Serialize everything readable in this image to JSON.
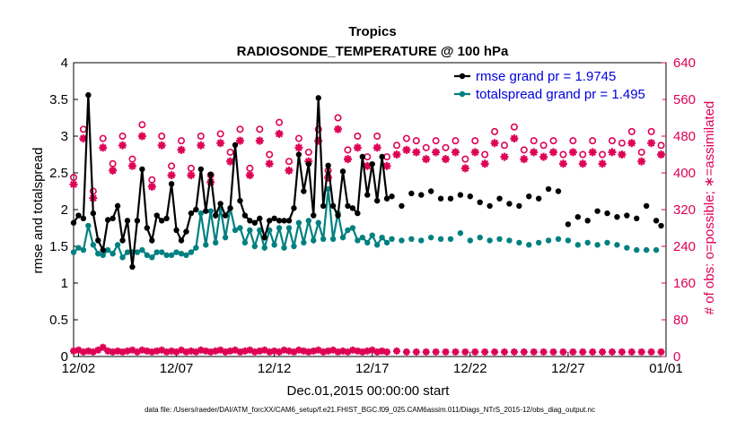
{
  "chart_data": {
    "type": "line",
    "title": "Tropics",
    "subtitle": "RADIOSONDE_TEMPERATURE @ 100 hPa",
    "xlabel": "Dec.01,2015 00:00:00 start",
    "ylabel_left": "rmse and totalspread",
    "ylabel_right": "# of obs: o=possible; ∗=assimilated",
    "footer": "data file: /Users/raeder/DAI/ATM_forcXX/CAM6_setup/f.e21.FHIST_BGC.f09_025.CAM6assim.011/Diags_NTrS_2015-12/obs_diag_output.nc",
    "x_unit": "days since Dec 01 00:00 (0.25 day steps)",
    "xlim": [
      0.75,
      31.0
    ],
    "ylim_left": [
      0,
      4
    ],
    "ylim_right": [
      0,
      640
    ],
    "yticks_left": [
      "0",
      "0.5",
      "1",
      "1.5",
      "2",
      "2.5",
      "3",
      "3.5",
      "4"
    ],
    "yticks_right": [
      "0",
      "80",
      "160",
      "240",
      "320",
      "400",
      "480",
      "560",
      "640"
    ],
    "xticks": [
      {
        "label": "12/02",
        "x": 1
      },
      {
        "label": "12/07",
        "x": 6
      },
      {
        "label": "12/12",
        "x": 11
      },
      {
        "label": "12/17",
        "x": 16
      },
      {
        "label": "12/22",
        "x": 21
      },
      {
        "label": "12/27",
        "x": 26
      },
      {
        "label": "01/01",
        "x": 31
      }
    ],
    "legend": [
      {
        "label": "rmse grand pr = 1.9745",
        "color": "#000000"
      },
      {
        "label": "totalspread grand pr = 1.495",
        "color": "#008080"
      }
    ],
    "series": [
      {
        "name": "rmse",
        "color": "#000000",
        "axis": "left",
        "x": [
          0.75,
          1.0,
          1.25,
          1.5,
          1.75,
          2.0,
          2.25,
          2.5,
          2.75,
          3.0,
          3.25,
          3.5,
          3.75,
          4.0,
          4.25,
          4.5,
          4.75,
          5.0,
          5.25,
          5.5,
          5.75,
          6.0,
          6.25,
          6.5,
          6.75,
          7.0,
          7.25,
          7.5,
          7.75,
          8.0,
          8.25,
          8.5,
          8.75,
          9.0,
          9.25,
          9.5,
          9.75,
          10.0,
          10.25,
          10.5,
          10.75,
          11.0,
          11.25,
          11.5,
          11.75,
          12.0,
          12.25,
          12.5,
          12.75,
          13.0,
          13.25,
          13.5,
          13.75,
          14.0,
          14.25,
          14.5,
          14.75,
          15.0,
          15.25,
          15.5,
          15.75,
          16.0,
          16.25,
          16.5,
          16.75
        ],
        "values": [
          1.82,
          1.92,
          1.88,
          3.56,
          1.95,
          1.58,
          1.45,
          1.86,
          1.88,
          2.05,
          1.58,
          1.85,
          1.22,
          1.85,
          2.55,
          1.75,
          1.58,
          1.92,
          1.85,
          1.88,
          2.35,
          1.72,
          1.58,
          1.7,
          1.95,
          2.0,
          2.55,
          1.98,
          2.48,
          1.92,
          2.08,
          1.92,
          2.02,
          2.88,
          2.12,
          1.92,
          1.85,
          1.82,
          1.88,
          1.62,
          1.85,
          1.88,
          1.85,
          1.85,
          1.85,
          2.02,
          2.75,
          2.25,
          2.62,
          1.92,
          3.52,
          2.05,
          2.6,
          2.05,
          1.92,
          2.52,
          2.05,
          2.02,
          1.95,
          2.72,
          2.2,
          2.62,
          2.12,
          2.72,
          2.15
        ],
        "scatter_x": [
          17.5,
          18.5,
          19.5,
          20.5,
          21.5,
          22.5,
          23.5,
          24.5,
          25.5,
          26.5,
          27.5,
          28.5,
          29.5,
          30.5
        ],
        "scatter_values": [
          2.05,
          2.2,
          2.15,
          2.2,
          2.1,
          2.15,
          2.05,
          2.15,
          2.25,
          1.9,
          1.98,
          1.9,
          1.88,
          1.85
        ],
        "extra_points": [
          {
            "x": 17.0,
            "y": 2.18
          },
          {
            "x": 18.0,
            "y": 2.22
          },
          {
            "x": 19.0,
            "y": 2.25
          },
          {
            "x": 20.0,
            "y": 2.15
          },
          {
            "x": 21.0,
            "y": 2.18
          },
          {
            "x": 22.0,
            "y": 2.05
          },
          {
            "x": 23.0,
            "y": 2.08
          },
          {
            "x": 24.0,
            "y": 2.18
          },
          {
            "x": 25.0,
            "y": 2.28
          },
          {
            "x": 26.0,
            "y": 1.8
          },
          {
            "x": 27.0,
            "y": 1.85
          },
          {
            "x": 28.0,
            "y": 1.95
          },
          {
            "x": 29.0,
            "y": 1.92
          },
          {
            "x": 30.0,
            "y": 2.05
          },
          {
            "x": 30.75,
            "y": 1.78
          }
        ]
      },
      {
        "name": "totalspread",
        "color": "#008080",
        "axis": "left",
        "x": [
          0.75,
          1.0,
          1.25,
          1.5,
          1.75,
          2.0,
          2.25,
          2.5,
          2.75,
          3.0,
          3.25,
          3.5,
          3.75,
          4.0,
          4.25,
          4.5,
          4.75,
          5.0,
          5.25,
          5.5,
          5.75,
          6.0,
          6.25,
          6.5,
          6.75,
          7.0,
          7.25,
          7.5,
          7.75,
          8.0,
          8.25,
          8.5,
          8.75,
          9.0,
          9.25,
          9.5,
          9.75,
          10.0,
          10.25,
          10.5,
          10.75,
          11.0,
          11.25,
          11.5,
          11.75,
          12.0,
          12.25,
          12.5,
          12.75,
          13.0,
          13.25,
          13.5,
          13.75,
          14.0,
          14.25,
          14.5,
          14.75,
          15.0,
          15.25,
          15.5,
          15.75,
          16.0,
          16.25,
          16.5,
          16.75
        ],
        "values": [
          1.42,
          1.48,
          1.45,
          1.78,
          1.52,
          1.4,
          1.38,
          1.45,
          1.4,
          1.52,
          1.35,
          1.42,
          1.42,
          1.42,
          1.45,
          1.38,
          1.35,
          1.42,
          1.42,
          1.38,
          1.38,
          1.42,
          1.4,
          1.38,
          1.42,
          1.48,
          1.95,
          1.52,
          1.98,
          1.55,
          2.02,
          1.62,
          2.02,
          1.72,
          1.75,
          1.55,
          1.72,
          1.5,
          1.72,
          1.48,
          1.72,
          1.52,
          1.75,
          1.48,
          1.75,
          1.5,
          1.82,
          1.55,
          1.85,
          1.58,
          1.82,
          1.6,
          2.28,
          1.6,
          1.95,
          1.62,
          1.72,
          1.75,
          1.58,
          1.62,
          1.55,
          1.65,
          1.52,
          1.62,
          1.55
        ],
        "extra_points": [
          {
            "x": 17.0,
            "y": 1.6
          },
          {
            "x": 17.5,
            "y": 1.58
          },
          {
            "x": 18.0,
            "y": 1.6
          },
          {
            "x": 18.5,
            "y": 1.58
          },
          {
            "x": 19.0,
            "y": 1.62
          },
          {
            "x": 19.5,
            "y": 1.6
          },
          {
            "x": 20.0,
            "y": 1.6
          },
          {
            "x": 20.5,
            "y": 1.68
          },
          {
            "x": 21.0,
            "y": 1.58
          },
          {
            "x": 21.5,
            "y": 1.62
          },
          {
            "x": 22.0,
            "y": 1.58
          },
          {
            "x": 22.5,
            "y": 1.6
          },
          {
            "x": 23.0,
            "y": 1.58
          },
          {
            "x": 23.5,
            "y": 1.55
          },
          {
            "x": 24.0,
            "y": 1.52
          },
          {
            "x": 24.5,
            "y": 1.55
          },
          {
            "x": 25.0,
            "y": 1.58
          },
          {
            "x": 25.5,
            "y": 1.6
          },
          {
            "x": 26.0,
            "y": 1.58
          },
          {
            "x": 26.5,
            "y": 1.52
          },
          {
            "x": 27.0,
            "y": 1.55
          },
          {
            "x": 27.5,
            "y": 1.52
          },
          {
            "x": 28.0,
            "y": 1.55
          },
          {
            "x": 28.5,
            "y": 1.52
          },
          {
            "x": 29.0,
            "y": 1.48
          },
          {
            "x": 29.5,
            "y": 1.45
          },
          {
            "x": 30.0,
            "y": 1.45
          },
          {
            "x": 30.5,
            "y": 1.45
          }
        ]
      },
      {
        "name": "obs possible",
        "color": "#dd0055",
        "axis": "right",
        "marker": "o",
        "x": [
          0.75,
          1.25,
          1.75,
          2.25,
          2.75,
          3.25,
          3.75,
          4.25,
          4.75,
          5.25,
          5.75,
          6.25,
          6.75,
          7.25,
          7.75,
          8.25,
          8.75,
          9.25,
          9.75,
          10.25,
          10.75,
          11.25,
          11.75,
          12.25,
          12.75,
          13.25,
          13.75,
          14.25,
          14.75,
          15.25,
          15.75,
          16.25,
          16.75,
          17.25,
          17.75,
          18.25,
          18.75,
          19.25,
          19.75,
          20.25,
          20.75,
          21.25,
          21.75,
          22.25,
          22.75,
          23.25,
          23.75,
          24.25,
          24.75,
          25.25,
          25.75,
          26.25,
          26.75,
          27.25,
          27.75,
          28.25,
          28.75,
          29.25,
          29.75,
          30.25,
          30.75
        ],
        "values": [
          390,
          495,
          360,
          475,
          420,
          480,
          430,
          505,
          385,
          480,
          415,
          470,
          410,
          480,
          395,
          485,
          445,
          495,
          410,
          495,
          440,
          510,
          425,
          475,
          445,
          495,
          405,
          520,
          450,
          480,
          435,
          480,
          435,
          460,
          475,
          470,
          455,
          470,
          455,
          470,
          430,
          470,
          440,
          490,
          460,
          500,
          450,
          470,
          460,
          470,
          440,
          470,
          440,
          470,
          440,
          470,
          465,
          490,
          445,
          490,
          460
        ]
      },
      {
        "name": "obs assimilated",
        "color": "#dd0055",
        "axis": "right",
        "marker": "*",
        "x": [
          0.75,
          1.25,
          1.75,
          2.25,
          2.75,
          3.25,
          3.75,
          4.25,
          4.75,
          5.25,
          5.75,
          6.25,
          6.75,
          7.25,
          7.75,
          8.25,
          8.75,
          9.25,
          9.75,
          10.25,
          10.75,
          11.25,
          11.75,
          12.25,
          12.75,
          13.25,
          13.75,
          14.25,
          14.75,
          15.25,
          15.75,
          16.25,
          16.75,
          17.25,
          17.75,
          18.25,
          18.75,
          19.25,
          19.75,
          20.25,
          20.75,
          21.25,
          21.75,
          22.25,
          22.75,
          23.25,
          23.75,
          24.25,
          24.75,
          25.25,
          25.75,
          26.25,
          26.75,
          27.25,
          27.75,
          28.25,
          28.75,
          29.25,
          29.75,
          30.25,
          30.75
        ],
        "values": [
          375,
          475,
          345,
          455,
          405,
          460,
          415,
          480,
          370,
          460,
          395,
          450,
          395,
          460,
          380,
          465,
          425,
          470,
          395,
          470,
          420,
          485,
          405,
          455,
          425,
          470,
          390,
          495,
          430,
          455,
          415,
          455,
          415,
          440,
          450,
          445,
          430,
          445,
          430,
          445,
          410,
          445,
          420,
          465,
          435,
          475,
          430,
          445,
          435,
          445,
          420,
          445,
          420,
          445,
          420,
          445,
          440,
          465,
          425,
          465,
          440
        ]
      },
      {
        "name": "obs low (possible/assimilated)",
        "color": "#dd0055",
        "axis": "right",
        "marker": "*",
        "x": [
          0.75,
          1.0,
          1.25,
          1.5,
          1.75,
          2.0,
          2.25,
          2.5,
          2.75,
          3.0,
          3.25,
          3.5,
          3.75,
          4.0,
          4.25,
          4.5,
          4.75,
          5.0,
          5.25,
          5.5,
          5.75,
          6.0,
          6.25,
          6.5,
          6.75,
          7.0,
          7.25,
          7.5,
          7.75,
          8.0,
          8.25,
          8.5,
          8.75,
          9.0,
          9.25,
          9.5,
          9.75,
          10.0,
          10.25,
          10.5,
          10.75,
          11.0,
          11.25,
          11.5,
          11.75,
          12.0,
          12.25,
          12.5,
          12.75,
          13.0,
          13.25,
          13.5,
          13.75,
          14.0,
          14.25,
          14.5,
          14.75,
          15.0,
          15.25,
          15.5,
          15.75,
          16.0,
          16.25,
          16.5,
          16.75,
          17.25,
          17.75,
          18.25,
          18.75,
          19.25,
          19.75,
          20.25,
          20.75,
          21.25,
          21.75,
          22.25,
          22.75,
          23.25,
          23.75,
          24.25,
          24.75,
          25.25,
          25.75,
          26.25,
          26.75,
          27.25,
          27.75,
          28.25,
          28.75,
          29.25,
          29.75,
          30.25,
          30.75
        ],
        "values": [
          12,
          14,
          10,
          12,
          10,
          14,
          20,
          12,
          10,
          12,
          10,
          12,
          14,
          10,
          14,
          12,
          10,
          12,
          14,
          10,
          12,
          10,
          14,
          10,
          12,
          10,
          14,
          12,
          10,
          12,
          14,
          10,
          12,
          14,
          10,
          12,
          14,
          10,
          12,
          14,
          10,
          12,
          10,
          14,
          12,
          10,
          14,
          12,
          10,
          12,
          14,
          10,
          12,
          14,
          10,
          12,
          10,
          14,
          12,
          10,
          12,
          14,
          10,
          12,
          10,
          12,
          10,
          10,
          10,
          10,
          10,
          10,
          10,
          10,
          10,
          10,
          10,
          10,
          10,
          10,
          10,
          10,
          10,
          10,
          10,
          10,
          10,
          10,
          10,
          10,
          10,
          10,
          10
        ]
      }
    ]
  }
}
